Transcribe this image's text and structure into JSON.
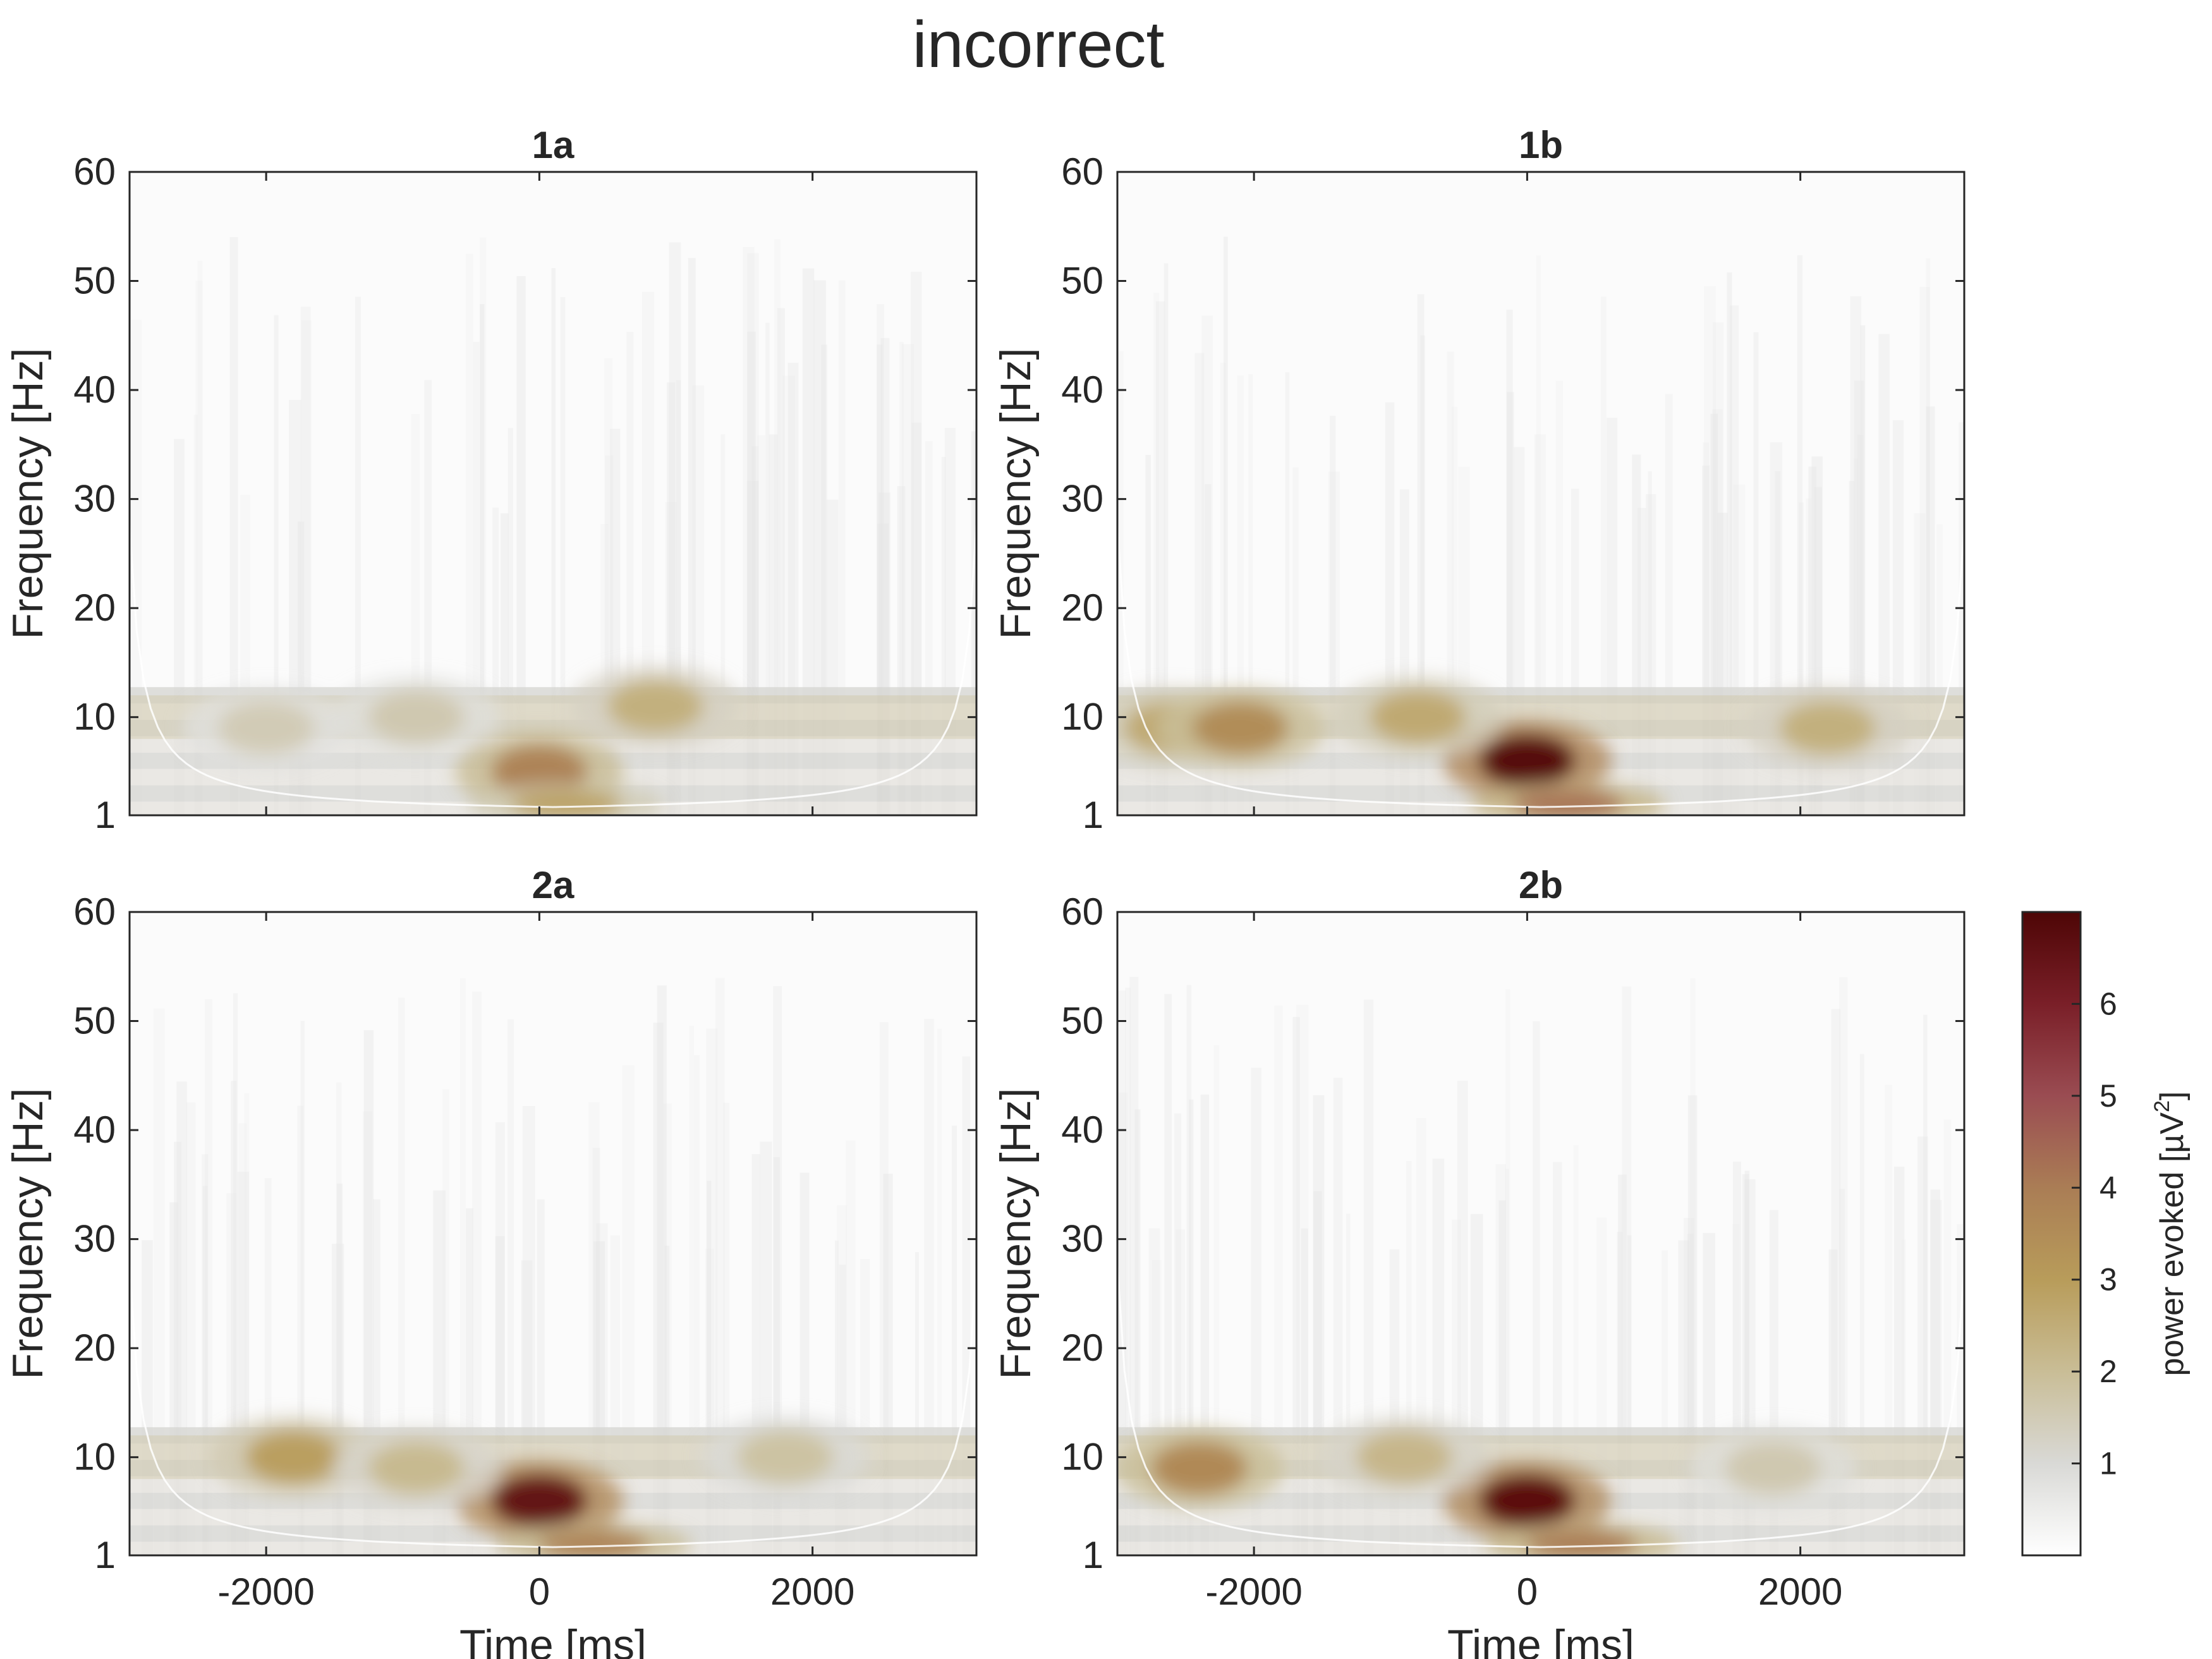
{
  "figure": {
    "title": "incorrect",
    "colorbar": {
      "label_main": "power evoked [µV",
      "label_sup": "2",
      "label_end": "]",
      "ticks": [
        "1",
        "2",
        "3",
        "4",
        "5",
        "6"
      ],
      "range": [
        0,
        7
      ],
      "colors": [
        "#ffffff",
        "#d9d9d6",
        "#c9bd96",
        "#b89c5a",
        "#aa7d55",
        "#9a4c52",
        "#7a1f28",
        "#4e0606"
      ]
    }
  },
  "chart_data": [
    {
      "type": "heatmap",
      "title": "1a",
      "xlabel": "",
      "ylabel": "Frequency [Hz]",
      "xlim": [
        -3000,
        3200
      ],
      "ylim": [
        1,
        60
      ],
      "xticks": [
        -2000,
        0,
        2000
      ],
      "yticks": [
        1,
        10,
        20,
        30,
        40,
        50,
        60
      ],
      "cone_of_influence": true,
      "hotspots": [
        {
          "time": 0,
          "freq": 5,
          "power": 3.8
        },
        {
          "time": 200,
          "freq": 2,
          "power": 2.8
        },
        {
          "time": 850,
          "freq": 11,
          "power": 2.4
        },
        {
          "time": -2000,
          "freq": 9,
          "power": 1.5
        },
        {
          "time": -900,
          "freq": 10,
          "power": 1.6
        }
      ]
    },
    {
      "type": "heatmap",
      "title": "1b",
      "xlabel": "",
      "ylabel": "Frequency [Hz]",
      "xlim": [
        -3000,
        3200
      ],
      "ylim": [
        1,
        60
      ],
      "xticks": [
        -2000,
        0,
        2000
      ],
      "yticks": [
        1,
        10,
        20,
        30,
        40,
        50,
        60
      ],
      "cone_of_influence": true,
      "hotspots": [
        {
          "time": 0,
          "freq": 6,
          "power": 6.8
        },
        {
          "time": 300,
          "freq": 2,
          "power": 4.2
        },
        {
          "time": -2600,
          "freq": 9,
          "power": 2.6
        },
        {
          "time": -2100,
          "freq": 9,
          "power": 3.5
        },
        {
          "time": -800,
          "freq": 10,
          "power": 2.6
        },
        {
          "time": 2200,
          "freq": 9,
          "power": 2.4
        }
      ]
    },
    {
      "type": "heatmap",
      "title": "2a",
      "xlabel": "Time [ms]",
      "ylabel": "Frequency [Hz]",
      "xlim": [
        -3000,
        3200
      ],
      "ylim": [
        1,
        60
      ],
      "xticks": [
        -2000,
        0,
        2000
      ],
      "yticks": [
        1,
        10,
        20,
        30,
        40,
        50,
        60
      ],
      "cone_of_influence": true,
      "hotspots": [
        {
          "time": 0,
          "freq": 6,
          "power": 6.5
        },
        {
          "time": 400,
          "freq": 2,
          "power": 3.8
        },
        {
          "time": -1800,
          "freq": 10,
          "power": 2.9
        },
        {
          "time": -900,
          "freq": 9,
          "power": 2.1
        },
        {
          "time": 1800,
          "freq": 10,
          "power": 1.8
        }
      ]
    },
    {
      "type": "heatmap",
      "title": "2b",
      "xlabel": "Time [ms]",
      "ylabel": "Frequency [Hz]",
      "xlim": [
        -3000,
        3200
      ],
      "ylim": [
        1,
        60
      ],
      "xticks": [
        -2000,
        0,
        2000
      ],
      "yticks": [
        1,
        10,
        20,
        30,
        40,
        50,
        60
      ],
      "cone_of_influence": true,
      "hotspots": [
        {
          "time": 0,
          "freq": 6,
          "power": 6.7
        },
        {
          "time": 400,
          "freq": 2,
          "power": 4.0
        },
        {
          "time": -2400,
          "freq": 9,
          "power": 3.6
        },
        {
          "time": -900,
          "freq": 10,
          "power": 2.2
        },
        {
          "time": 1800,
          "freq": 9,
          "power": 1.6
        }
      ]
    }
  ]
}
